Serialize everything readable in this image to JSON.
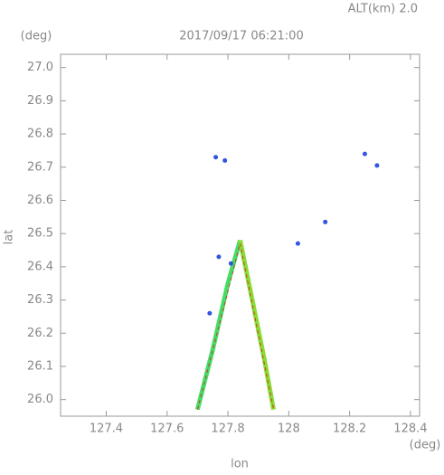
{
  "chart_data": {
    "type": "scatter",
    "title": "2017/09/17 06:21:00",
    "subtitle": "ALT(km)  2.0",
    "xlabel": "lon",
    "ylabel": "lat",
    "x_unit": "(deg)",
    "y_unit": "(deg)",
    "xlim": [
      127.25,
      128.43
    ],
    "ylim": [
      25.95,
      27.04
    ],
    "xticks": [
      127.4,
      127.6,
      127.8,
      128.0,
      128.2,
      128.4
    ],
    "yticks": [
      {
        "value": 26,
        "label": "26.0"
      },
      26.1,
      26.2,
      26.3,
      26.4,
      26.5,
      26.6,
      26.7,
      26.8,
      26.9,
      {
        "value": 27,
        "label": "27.0"
      }
    ],
    "series": [
      {
        "color": "#44dd66",
        "mode": "line",
        "x": [
          127.7,
          127.75,
          127.8,
          127.84
        ],
        "y": [
          25.97,
          26.15,
          26.35,
          26.48
        ]
      },
      {
        "color": "#88dd33",
        "mode": "line",
        "x": [
          127.84,
          127.88,
          127.92,
          127.95
        ],
        "y": [
          26.48,
          26.3,
          26.12,
          25.97
        ]
      },
      {
        "color": "#dd3333",
        "mode": "line",
        "x": [
          127.7,
          127.84,
          127.95
        ],
        "y": [
          25.97,
          26.47,
          25.97
        ]
      },
      {
        "color": "#3355dd",
        "mode": "points",
        "x": [
          127.76,
          127.79,
          128.25,
          128.29,
          128.12,
          128.03,
          127.77,
          127.81,
          127.74
        ],
        "y": [
          26.73,
          26.72,
          26.74,
          26.705,
          26.535,
          26.47,
          26.43,
          26.41,
          26.26
        ]
      }
    ]
  }
}
